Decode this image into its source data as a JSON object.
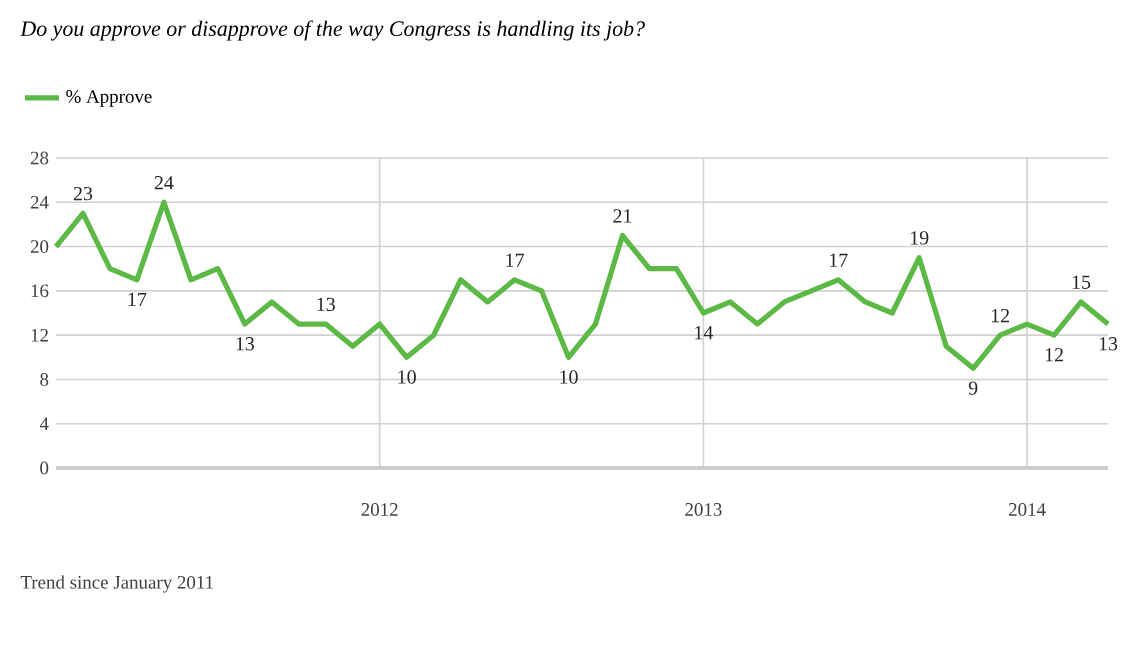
{
  "chart_data": {
    "type": "line",
    "title": "Do you approve or disapprove of the way Congress is handling its job?",
    "x": [
      "2011-01",
      "2011-02",
      "2011-03",
      "2011-04",
      "2011-05",
      "2011-06",
      "2011-07",
      "2011-08",
      "2011-09",
      "2011-10",
      "2011-11",
      "2011-12",
      "2012-01",
      "2012-02",
      "2012-03",
      "2012-04",
      "2012-05",
      "2012-06",
      "2012-07",
      "2012-08",
      "2012-09",
      "2012-10",
      "2012-11",
      "2012-12",
      "2013-01",
      "2013-02",
      "2013-03",
      "2013-04",
      "2013-05",
      "2013-06",
      "2013-07",
      "2013-08",
      "2013-09",
      "2013-10",
      "2013-11",
      "2013-12",
      "2014-01",
      "2014-02",
      "2014-03",
      "2014-04"
    ],
    "series": [
      {
        "name": "% Approve",
        "color": "#5cb946",
        "values": [
          20,
          23,
          18,
          17,
          24,
          17,
          18,
          13,
          15,
          13,
          13,
          11,
          13,
          10,
          12,
          17,
          15,
          17,
          16,
          10,
          13,
          21,
          18,
          18,
          14,
          15,
          13,
          15,
          16,
          17,
          15,
          14,
          19,
          11,
          9,
          12,
          13,
          12,
          15,
          13
        ],
        "value_labels": [
          null,
          "23",
          null,
          "17",
          "24",
          null,
          null,
          "13",
          null,
          null,
          "13",
          null,
          null,
          "10",
          null,
          null,
          null,
          "17",
          null,
          "10",
          null,
          "21",
          null,
          null,
          "14",
          null,
          null,
          null,
          null,
          "17",
          null,
          null,
          "19",
          null,
          "9",
          "12",
          null,
          "12",
          "15",
          "13"
        ]
      }
    ],
    "xlim": [
      "2011-01",
      "2014-04"
    ],
    "xticks": [
      {
        "value": "2012-01",
        "label": "2012"
      },
      {
        "value": "2013-01",
        "label": "2013"
      },
      {
        "value": "2014-01",
        "label": "2014"
      }
    ],
    "ylim": [
      0,
      28
    ],
    "yticks": [
      0,
      4,
      8,
      12,
      16,
      20,
      24,
      28
    ],
    "grid": true,
    "legend": "top left",
    "marker": "none",
    "line_style": "solid",
    "annotations": [
      "Trend since January 2011"
    ]
  }
}
